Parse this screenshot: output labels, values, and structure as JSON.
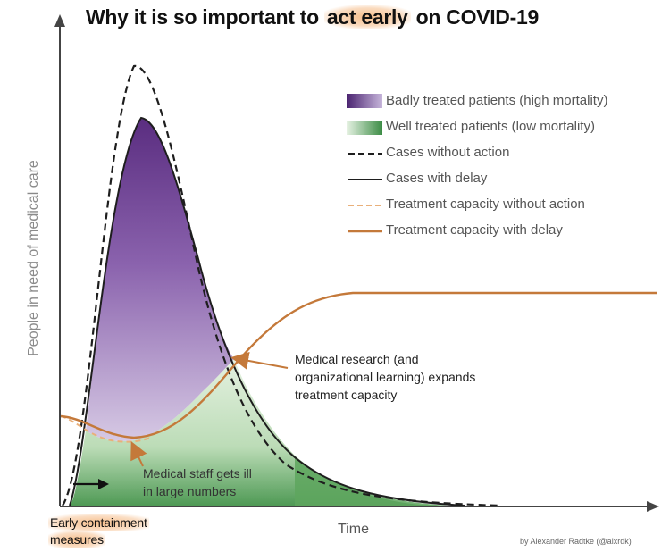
{
  "chart_data": {
    "type": "area",
    "title": {
      "before": "Why it is so important to ",
      "highlight": "act early",
      "after": " on COVID-19"
    },
    "xlabel": "Time",
    "ylabel": "People in need of medical care",
    "grid": false,
    "legend_position": "top-right",
    "series": [
      {
        "name": "Badly treated patients (high mortality)",
        "kind": "area",
        "color": "#6a3f8f"
      },
      {
        "name": "Well treated patients (low mortality)",
        "kind": "area",
        "color": "#5da35f"
      },
      {
        "name": "Cases without action",
        "kind": "dashed-line",
        "color": "#222222"
      },
      {
        "name": "Cases with delay",
        "kind": "line",
        "color": "#222222"
      },
      {
        "name": "Treatment capacity without action",
        "kind": "dashed-line",
        "color": "#e3a56a"
      },
      {
        "name": "Treatment capacity with delay",
        "kind": "line",
        "color": "#c4793a"
      }
    ],
    "annotations": {
      "research": [
        "Medical research (and",
        "organizational learning) expands",
        "treatment capacity"
      ],
      "staff": [
        "Medical staff gets ill",
        "in large numbers"
      ],
      "early": [
        "Early containment",
        "measures"
      ]
    },
    "credit": "by Alexander Radtke (@alxrdk)"
  },
  "colors": {
    "purple": "#6a3f8f",
    "green": "#5da35f",
    "capacity": "#c4793a",
    "capacity_light": "#e9b07a",
    "axis": "#444444"
  }
}
